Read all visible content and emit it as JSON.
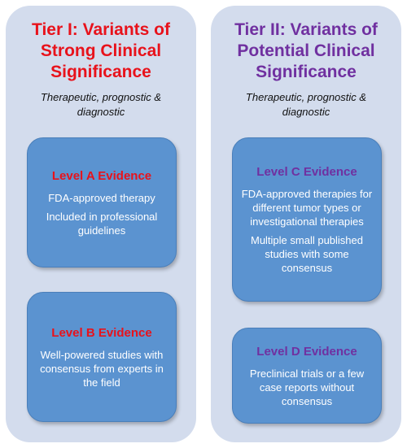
{
  "colors": {
    "panel_bg": "#d3dced",
    "box_bg": "#5b93d0",
    "tier1_accent": "#e8121b",
    "tier2_accent": "#7030a0"
  },
  "tiers": [
    {
      "title": "Tier I: Variants of Strong Clinical Significance",
      "subtitle": "Therapeutic, prognostic & diagnostic",
      "levels": [
        {
          "heading": "Level A Evidence",
          "lines": [
            "FDA-approved therapy",
            "Included in professional guidelines"
          ]
        },
        {
          "heading": "Level B Evidence",
          "lines": [
            "Well-powered studies with consensus from experts in the field"
          ]
        }
      ]
    },
    {
      "title": "Tier II: Variants of Potential Clinical Significance",
      "subtitle": "Therapeutic, prognostic & diagnostic",
      "levels": [
        {
          "heading": "Level C Evidence",
          "lines": [
            "FDA-approved therapies for different tumor types or investigational therapies",
            "Multiple small published studies with some consensus"
          ]
        },
        {
          "heading": "Level D Evidence",
          "lines": [
            "Preclinical trials or a few case reports without consensus"
          ]
        }
      ]
    }
  ]
}
